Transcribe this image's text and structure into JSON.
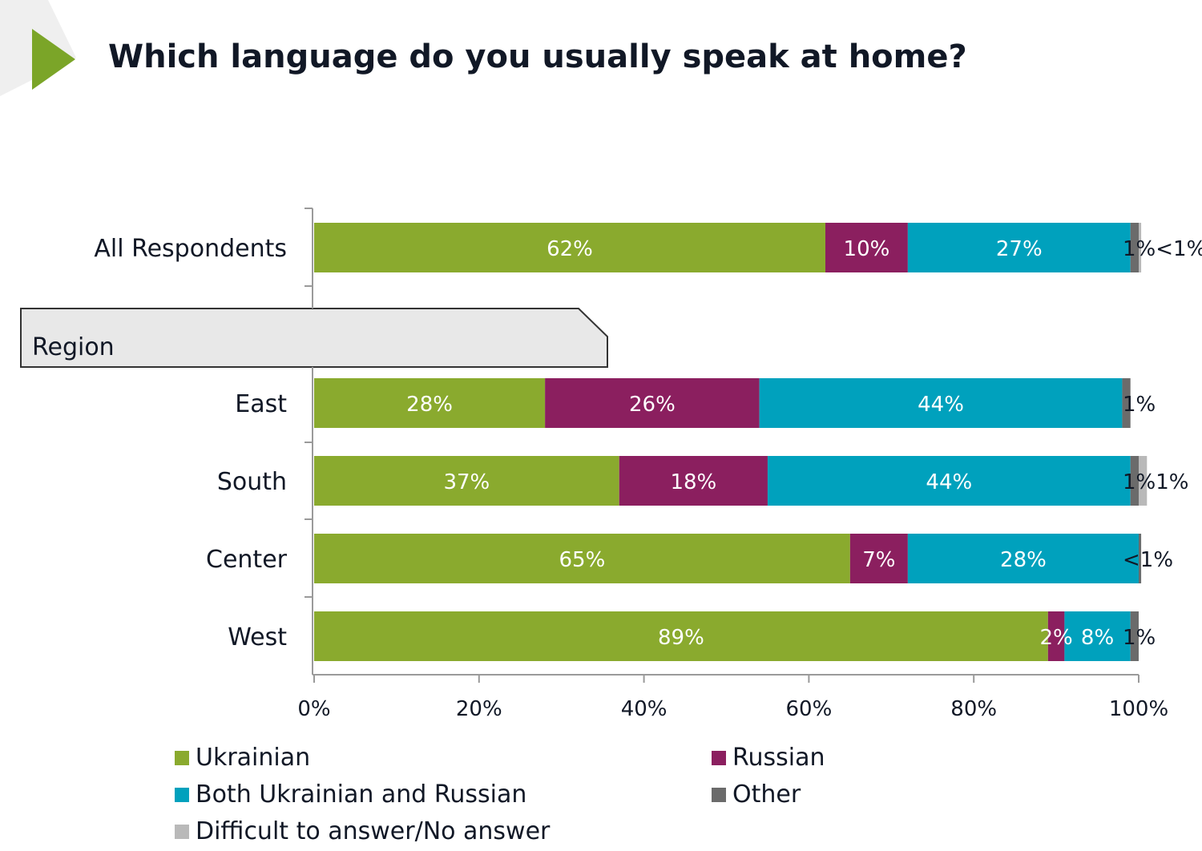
{
  "title": "Which language do you usually speak at home?",
  "section_label": "Region",
  "chart_data": {
    "type": "bar",
    "orientation": "horizontal",
    "stacked": true,
    "title": "Which language do you usually speak at home?",
    "categories": [
      "All Respondents",
      "East",
      "South",
      "Center",
      "West"
    ],
    "group_label": "Region",
    "series": [
      {
        "name": "Ukrainian",
        "color": "#8aaa2e",
        "values": [
          62,
          28,
          37,
          65,
          89
        ],
        "labels": [
          "62%",
          "28%",
          "37%",
          "65%",
          "89%"
        ]
      },
      {
        "name": "Russian",
        "color": "#8b1f5f",
        "values": [
          10,
          26,
          18,
          7,
          2
        ],
        "labels": [
          "10%",
          "26%",
          "18%",
          "7%",
          "2%"
        ]
      },
      {
        "name": "Both Ukrainian and Russian",
        "color": "#00a1bd",
        "values": [
          27,
          44,
          44,
          28,
          8
        ],
        "labels": [
          "27%",
          "44%",
          "44%",
          "28%",
          "8%"
        ]
      },
      {
        "name": "Other",
        "color": "#6b6b6b",
        "values": [
          1,
          1,
          1,
          0.3,
          1
        ],
        "labels": [
          "1%",
          "1%",
          "1%",
          "",
          "1%"
        ]
      },
      {
        "name": "Difficult to answer/No answer",
        "color": "#b9b9b9",
        "values": [
          0.3,
          0,
          1,
          0,
          0
        ],
        "labels": [
          "<1%",
          "",
          "1%",
          "<1%",
          ""
        ]
      }
    ],
    "outside_labels": [
      "1%<1%",
      "1%",
      "1%1%",
      "<1%",
      "1%"
    ],
    "x_ticks": [
      0,
      20,
      40,
      60,
      80,
      100
    ],
    "x_tick_labels": [
      "0%",
      "20%",
      "40%",
      "60%",
      "80%",
      "100%"
    ],
    "xlim": [
      0,
      100
    ],
    "legend": [
      {
        "name": "Ukrainian",
        "color": "#8aaa2e"
      },
      {
        "name": "Russian",
        "color": "#8b1f5f"
      },
      {
        "name": "Both Ukrainian and Russian",
        "color": "#00a1bd"
      },
      {
        "name": "Other",
        "color": "#6b6b6b"
      },
      {
        "name": "Difficult to answer/No answer",
        "color": "#b9b9b9"
      }
    ]
  }
}
